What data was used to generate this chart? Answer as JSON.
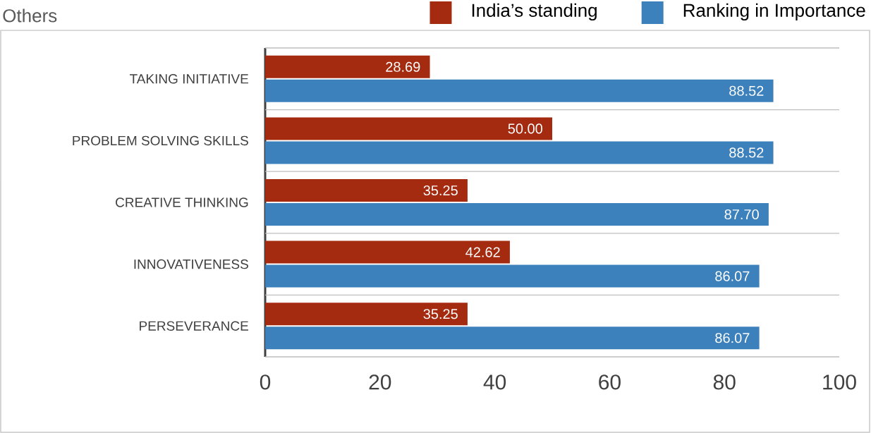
{
  "chart_data": {
    "type": "bar",
    "orientation": "horizontal",
    "title": "Others",
    "categories": [
      "TAKING INITIATIVE",
      "PROBLEM SOLVING SKILLS",
      "CREATIVE THINKING",
      "INNOVATIVENESS",
      "PERSEVERANCE"
    ],
    "series": [
      {
        "name": "India’s standing",
        "color": "#a52b10",
        "values": [
          28.69,
          50.0,
          35.25,
          42.62,
          35.25
        ],
        "value_labels": [
          "28.69",
          "50.00",
          "35.25",
          "42.62",
          "35.25"
        ]
      },
      {
        "name": "Ranking in Importance",
        "color": "#3c81bb",
        "values": [
          88.52,
          88.52,
          87.7,
          86.07,
          86.07
        ],
        "value_labels": [
          "88.52",
          "88.52",
          "87.70",
          "86.07",
          "86.07"
        ]
      }
    ],
    "xlim": [
      0,
      100
    ],
    "xticks": [
      0,
      20,
      40,
      60,
      80,
      100
    ],
    "grid": "y",
    "legend": "top right"
  }
}
